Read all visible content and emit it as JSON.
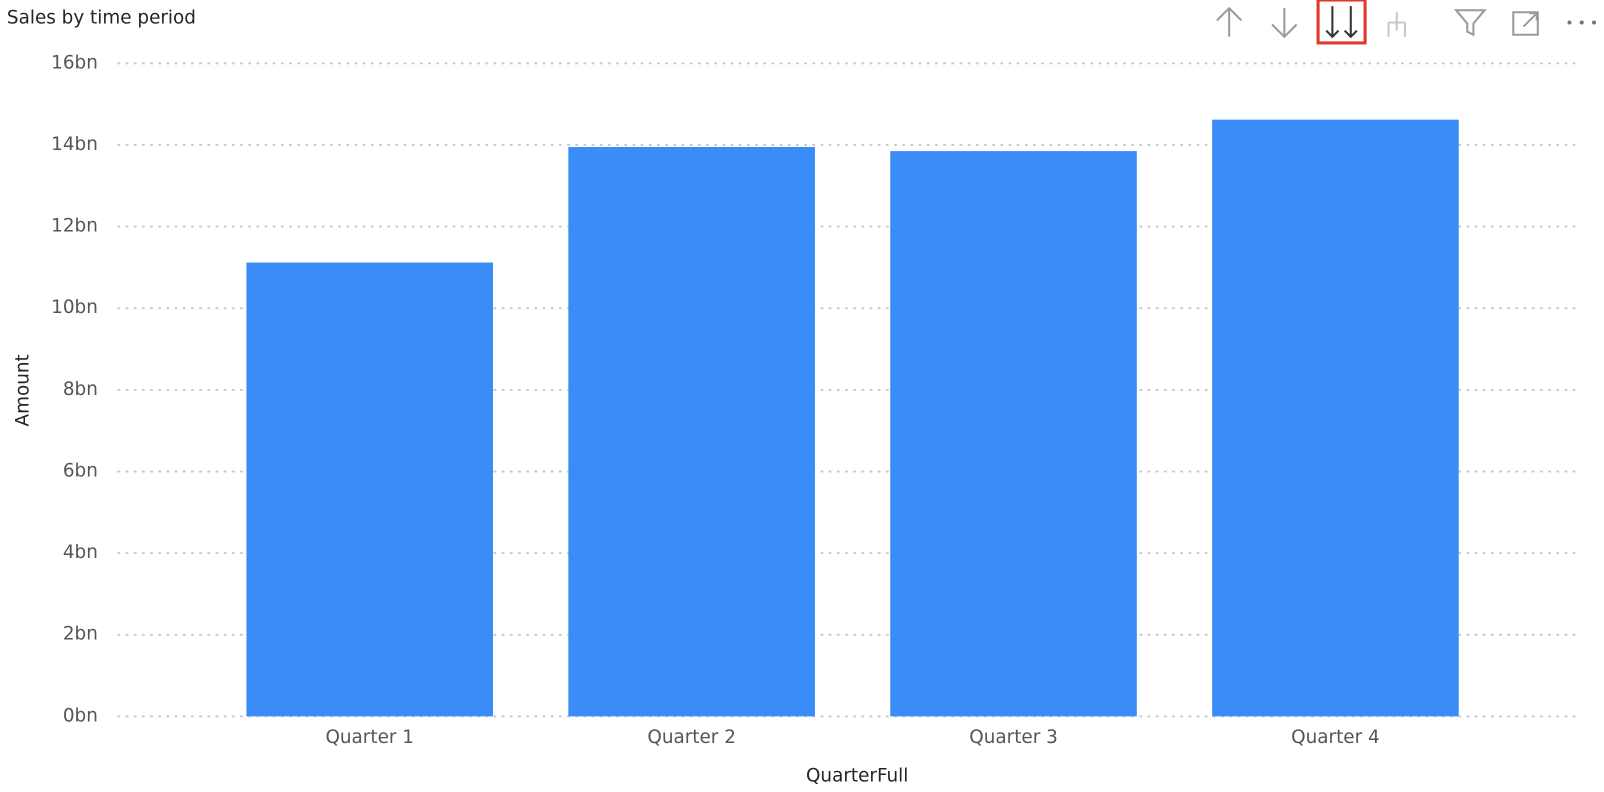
{
  "chart_data": {
    "type": "bar",
    "title": "Sales by time period",
    "x_label": "QuarterFull",
    "y_label": "Amount",
    "categories": [
      "Quarter 1",
      "Quarter 2",
      "Quarter 3",
      "Quarter 4"
    ],
    "values": [
      11.12,
      13.95,
      13.85,
      14.62
    ],
    "color": "#3a8cf6",
    "ylim": [
      0,
      16
    ],
    "yticks": [
      {
        "value": 0,
        "label": "0bn"
      },
      {
        "value": 2,
        "label": "2bn"
      },
      {
        "value": 4,
        "label": "4bn"
      },
      {
        "value": 6,
        "label": "6bn"
      },
      {
        "value": 8,
        "label": "8bn"
      },
      {
        "value": 10,
        "label": "10bn"
      },
      {
        "value": 12,
        "label": "12bn"
      },
      {
        "value": 14,
        "label": "14bn"
      },
      {
        "value": 16,
        "label": "16bn"
      }
    ],
    "grid": true
  }
}
